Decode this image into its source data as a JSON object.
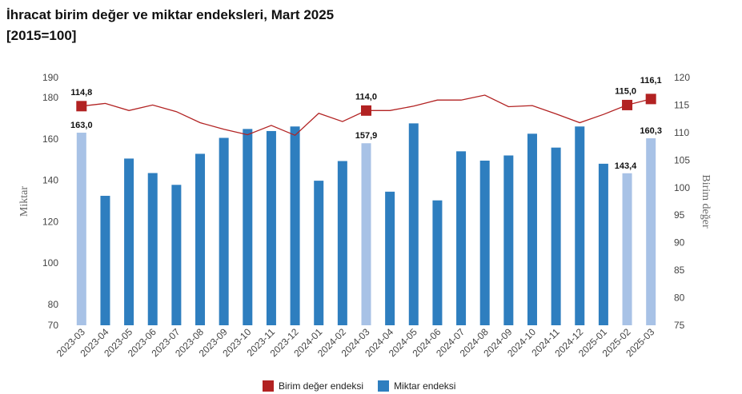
{
  "title_line1": "İhracat birim değer ve miktar endeksleri, Mart 2025",
  "title_line2": "[2015=100]",
  "chart_data": {
    "type": "bar+line",
    "categories": [
      "2023-03",
      "2023-04",
      "2023-05",
      "2023-06",
      "2023-07",
      "2023-08",
      "2023-09",
      "2023-10",
      "2023-11",
      "2023-12",
      "2024-01",
      "2024-02",
      "2024-03",
      "2024-04",
      "2024-05",
      "2024-06",
      "2024-07",
      "2024-08",
      "2024-09",
      "2024-10",
      "2024-11",
      "2024-12",
      "2025-01",
      "2025-02",
      "2025-03"
    ],
    "ylabel_left": "Miktar",
    "ylabel_right": "Birim değer",
    "ylim_left": [
      70,
      190
    ],
    "yticks_left": [
      70,
      80,
      100,
      120,
      140,
      160,
      180,
      190
    ],
    "ylim_right": [
      75,
      120
    ],
    "yticks_right": [
      75,
      80,
      85,
      90,
      95,
      100,
      105,
      110,
      115,
      120
    ],
    "series": [
      {
        "name": "Miktar endeksi",
        "type": "bar",
        "axis": "left",
        "color": "#2e7ebf",
        "highlight_color": "#a8c2e6",
        "highlight_indices": [
          0,
          12,
          23,
          24
        ],
        "values": [
          163.0,
          132.5,
          150.5,
          143.5,
          137.8,
          152.8,
          160.5,
          164.8,
          163.8,
          166.0,
          139.8,
          149.3,
          157.9,
          134.5,
          167.5,
          130.3,
          154.0,
          149.5,
          152.0,
          162.5,
          155.8,
          166.0,
          148.0,
          143.4,
          160.3
        ]
      },
      {
        "name": "Birim değer endeksi",
        "type": "line",
        "axis": "right",
        "color": "#b22222",
        "marker_indices": [
          0,
          12,
          23,
          24
        ],
        "values": [
          114.8,
          115.3,
          114.0,
          115.0,
          113.8,
          111.8,
          110.6,
          109.6,
          111.3,
          109.5,
          113.5,
          112.0,
          114.0,
          114.0,
          114.8,
          115.9,
          115.9,
          116.8,
          114.7,
          114.9,
          113.4,
          111.8,
          113.3,
          115.0,
          116.1
        ]
      }
    ],
    "data_labels": [
      {
        "series": "Miktar endeksi",
        "index": 0,
        "text": "163,0"
      },
      {
        "series": "Miktar endeksi",
        "index": 12,
        "text": "157,9"
      },
      {
        "series": "Miktar endeksi",
        "index": 23,
        "text": "143,4"
      },
      {
        "series": "Miktar endeksi",
        "index": 24,
        "text": "160,3"
      },
      {
        "series": "Birim değer endeksi",
        "index": 0,
        "text": "114,8"
      },
      {
        "series": "Birim değer endeksi",
        "index": 12,
        "text": "114,0"
      },
      {
        "series": "Birim değer endeksi",
        "index": 23,
        "text": "115,0"
      },
      {
        "series": "Birim değer endeksi",
        "index": 24,
        "text": "116,1"
      }
    ],
    "legend": [
      {
        "label": "Birim değer endeksi",
        "color": "#b22222"
      },
      {
        "label": "Miktar endeksi",
        "color": "#2e7ebf"
      }
    ],
    "legend_position": "bottom",
    "grid": false
  }
}
